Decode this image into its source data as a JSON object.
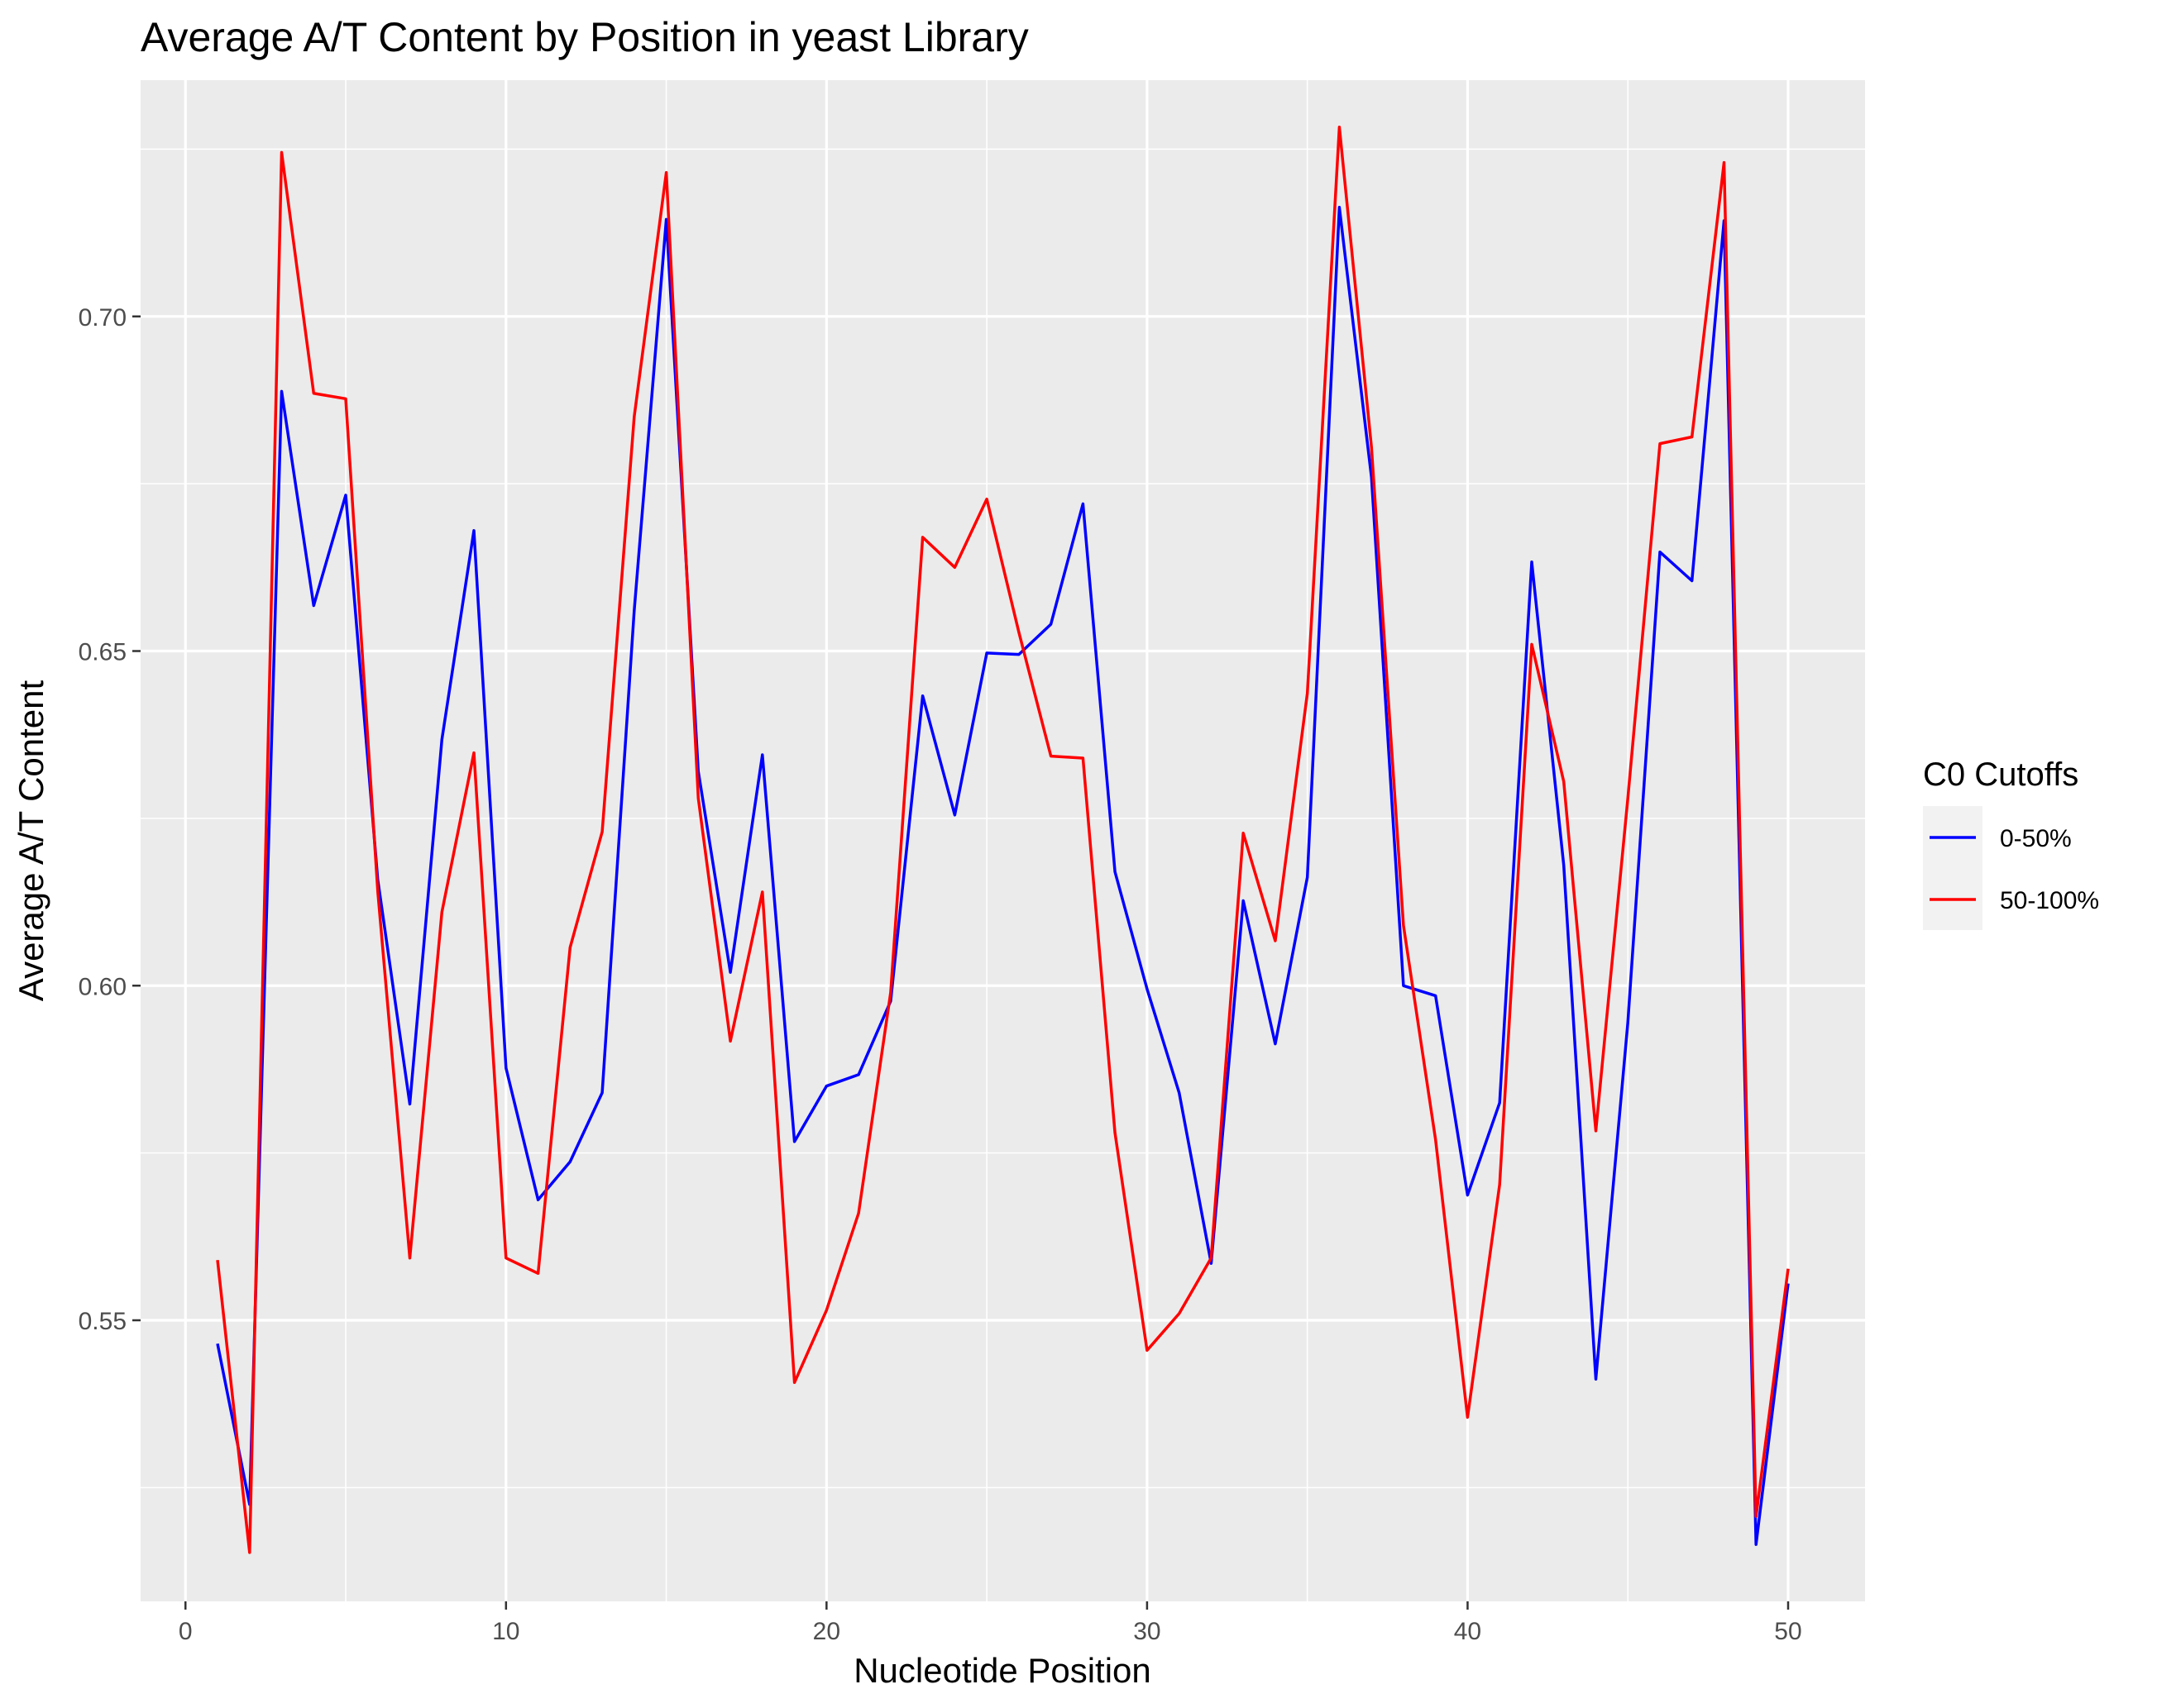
{
  "chart_data": {
    "type": "line",
    "title": "Average A/T Content by Position in yeast Library",
    "xlabel": "Nucleotide Position",
    "ylabel": "Average A/T Content",
    "xlim": [
      -1.4,
      52.4
    ],
    "ylim": [
      0.508,
      0.7353
    ],
    "x_ticks": [
      0,
      10,
      20,
      30,
      40,
      50
    ],
    "x_tick_labels": [
      "0",
      "10",
      "20",
      "30",
      "40",
      "50"
    ],
    "y_ticks": [
      0.55,
      0.6,
      0.65,
      0.7
    ],
    "y_tick_labels": [
      "0.55",
      "0.60",
      "0.65",
      "0.70"
    ],
    "grid": true,
    "legend": {
      "title": "C0 Cutoffs",
      "position": "right"
    },
    "x": [
      1,
      2,
      3,
      4,
      5,
      6,
      7,
      8,
      9,
      10,
      11,
      12,
      13,
      14,
      15,
      16,
      17,
      18,
      19,
      20,
      21,
      22,
      23,
      24,
      25,
      26,
      27,
      28,
      29,
      30,
      31,
      32,
      33,
      34,
      35,
      36,
      37,
      38,
      39,
      40,
      41,
      42,
      43,
      44,
      45,
      46,
      47,
      48,
      49,
      50
    ],
    "series": [
      {
        "name": "0-50%",
        "color": "#0000ff",
        "values": [
          0.5465,
          0.5225,
          0.6888,
          0.6568,
          0.6733,
          0.6158,
          0.5823,
          0.6368,
          0.668,
          0.5877,
          0.568,
          0.5737,
          0.584,
          0.656,
          0.7145,
          0.632,
          0.602,
          0.6345,
          0.5767,
          0.585,
          0.5867,
          0.5977,
          0.6433,
          0.6255,
          0.6497,
          0.6495,
          0.654,
          0.672,
          0.617,
          0.5995,
          0.584,
          0.5585,
          0.6127,
          0.5913,
          0.6162,
          0.7163,
          0.676,
          0.6,
          0.5985,
          0.5687,
          0.5825,
          0.6633,
          0.618,
          0.5412,
          0.5945,
          0.6648,
          0.6605,
          0.7143,
          0.5165,
          0.5555
        ]
      },
      {
        "name": "50-100%",
        "color": "#ff0000",
        "values": [
          0.559,
          0.5153,
          0.7245,
          0.6885,
          0.6877,
          0.614,
          0.5593,
          0.611,
          0.6348,
          0.5593,
          0.557,
          0.6057,
          0.623,
          0.685,
          0.7215,
          0.628,
          0.5917,
          0.614,
          0.5407,
          0.5515,
          0.566,
          0.599,
          0.667,
          0.6625,
          0.6727,
          0.6528,
          0.6343,
          0.634,
          0.578,
          0.5455,
          0.551,
          0.5593,
          0.6228,
          0.6067,
          0.6437,
          0.7283,
          0.6805,
          0.609,
          0.577,
          0.5355,
          0.5703,
          0.651,
          0.6305,
          0.5783,
          0.628,
          0.681,
          0.682,
          0.723,
          0.5207,
          0.5577
        ]
      }
    ]
  }
}
